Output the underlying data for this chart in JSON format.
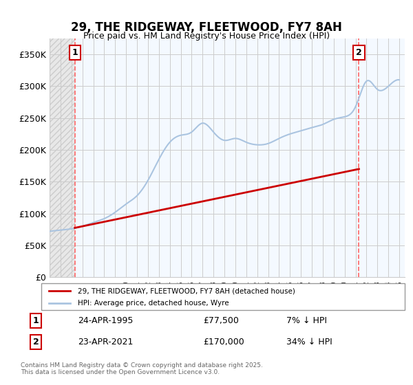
{
  "title": "29, THE RIDGEWAY, FLEETWOOD, FY7 8AH",
  "subtitle": "Price paid vs. HM Land Registry's House Price Index (HPI)",
  "ylabel_ticks": [
    "£0",
    "£50K",
    "£100K",
    "£150K",
    "£200K",
    "£250K",
    "£300K",
    "£350K"
  ],
  "ytick_values": [
    0,
    50000,
    100000,
    150000,
    200000,
    250000,
    300000,
    350000
  ],
  "ylim": [
    0,
    375000
  ],
  "xlim_start": 1993.0,
  "xlim_end": 2025.5,
  "hpi_color": "#aac4e0",
  "price_color": "#cc0000",
  "vline_color": "#ff6666",
  "annotation_box_color": "#cc0000",
  "background_hatch_color": "#e8e8e8",
  "purchase1_x": 1995.31,
  "purchase1_y": 77500,
  "purchase2_x": 2021.31,
  "purchase2_y": 170000,
  "legend_label1": "29, THE RIDGEWAY, FLEETWOOD, FY7 8AH (detached house)",
  "legend_label2": "HPI: Average price, detached house, Wyre",
  "ann1_label": "1",
  "ann2_label": "2",
  "table_row1": [
    "1",
    "24-APR-1995",
    "£77,500",
    "7% ↓ HPI"
  ],
  "table_row2": [
    "2",
    "23-APR-2021",
    "£170,000",
    "34% ↓ HPI"
  ],
  "footer": "Contains HM Land Registry data © Crown copyright and database right 2025.\nThis data is licensed under the Open Government Licence v3.0.",
  "hpi_years": [
    1993,
    1994,
    1995,
    1996,
    1997,
    1998,
    1999,
    2000,
    2001,
    2002,
    2003,
    2004,
    2005,
    2006,
    2007,
    2008,
    2009,
    2010,
    2011,
    2012,
    2013,
    2014,
    2015,
    2016,
    2017,
    2018,
    2019,
    2020,
    2021,
    2022,
    2023,
    2024,
    2025
  ],
  "hpi_values": [
    72000,
    74000,
    76000,
    80000,
    86000,
    92000,
    102000,
    115000,
    128000,
    152000,
    185000,
    212000,
    223000,
    228000,
    242000,
    228000,
    215000,
    218000,
    212000,
    208000,
    210000,
    218000,
    225000,
    230000,
    235000,
    240000,
    248000,
    252000,
    268000,
    308000,
    295000,
    300000,
    310000
  ],
  "price_years": [
    1995.31,
    2021.31
  ],
  "price_values": [
    77500,
    170000
  ]
}
